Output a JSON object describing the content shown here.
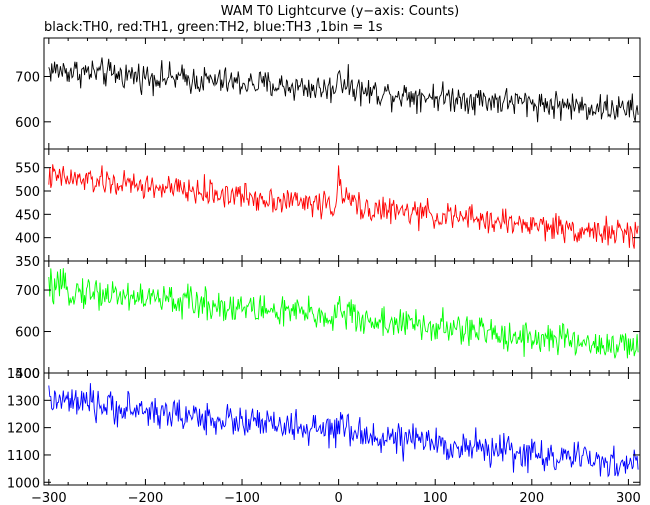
{
  "title": "WAM T0 Lightcurve (y−axis: Counts)",
  "subtitle": "black:TH0, red:TH1, green:TH2, blue:TH3 ,1bin = 1s",
  "chart_data": [
    {
      "type": "line",
      "series": [
        {
          "name": "TH0",
          "color": "#000000",
          "start": 715,
          "end": 625,
          "noise": 24,
          "spike": 60
        }
      ],
      "xlim": [
        -305,
        312
      ],
      "ylim": [
        540,
        785
      ],
      "yticks": [
        600,
        700
      ],
      "ytick_labels": [
        "600",
        "700"
      ]
    },
    {
      "type": "line",
      "series": [
        {
          "name": "TH1",
          "color": "#ff0000",
          "start": 530,
          "end": 405,
          "noise": 22,
          "spike": 70
        }
      ],
      "xlim": [
        -305,
        312
      ],
      "ylim": [
        350,
        590
      ],
      "yticks": [
        350,
        400,
        450,
        500,
        550
      ],
      "ytick_labels": [
        "350",
        "400",
        "450",
        "500",
        "550"
      ]
    },
    {
      "type": "line",
      "series": [
        {
          "name": "TH2",
          "color": "#00ff00",
          "start": 705,
          "end": 560,
          "noise": 30,
          "spike": 40
        }
      ],
      "xlim": [
        -305,
        312
      ],
      "ylim": [
        500,
        770
      ],
      "yticks": [
        500,
        600,
        700
      ],
      "ytick_labels": [
        "500",
        "600",
        "700"
      ]
    },
    {
      "type": "line",
      "series": [
        {
          "name": "TH3",
          "color": "#0000ff",
          "start": 1300,
          "end": 1060,
          "noise": 45,
          "spike": 40
        }
      ],
      "xlim": [
        -305,
        312
      ],
      "ylim": [
        990,
        1400
      ],
      "yticks": [
        1000,
        1100,
        1200,
        1300,
        1400
      ],
      "ytick_labels": [
        "1000",
        "1100",
        "1200",
        "1300",
        "1400"
      ],
      "xticks": [
        -300,
        -200,
        -100,
        0,
        100,
        200,
        300
      ],
      "xtick_labels": [
        "−300",
        "−200",
        "−100",
        "0",
        "100",
        "200",
        "300"
      ]
    }
  ]
}
